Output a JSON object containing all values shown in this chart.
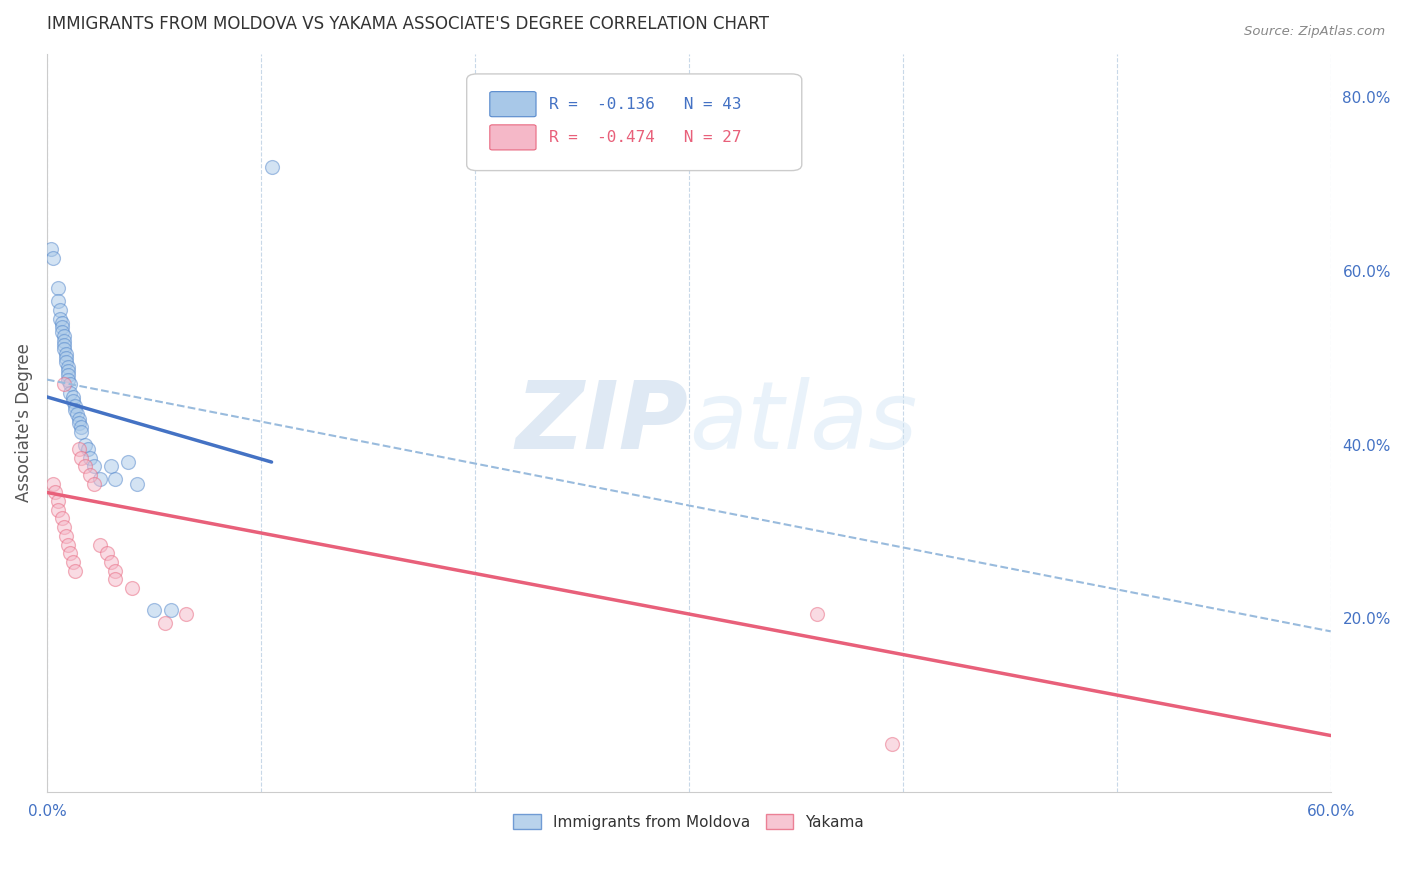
{
  "title": "IMMIGRANTS FROM MOLDOVA VS YAKAMA ASSOCIATE'S DEGREE CORRELATION CHART",
  "source": "Source: ZipAtlas.com",
  "ylabel": "Associate's Degree",
  "watermark_zip": "ZIP",
  "watermark_atlas": "atlas",
  "xlim": [
    0.0,
    0.6
  ],
  "ylim": [
    0.0,
    0.85
  ],
  "xtick_positions": [
    0.0,
    0.1,
    0.2,
    0.3,
    0.4,
    0.5,
    0.6
  ],
  "xticklabels": [
    "0.0%",
    "",
    "",
    "",
    "",
    "",
    "60.0%"
  ],
  "ytick_positions": [
    0.0,
    0.2,
    0.4,
    0.6,
    0.8
  ],
  "yticklabels_right": [
    "",
    "20.0%",
    "40.0%",
    "60.0%",
    "80.0%"
  ],
  "blue_color": "#a8c8e8",
  "pink_color": "#f5b8c8",
  "blue_edge_color": "#5588cc",
  "pink_edge_color": "#e86880",
  "blue_line_color": "#4472c4",
  "pink_line_color": "#e8607a",
  "dashed_line_color": "#99bbdd",
  "title_color": "#333333",
  "tick_color": "#4472c4",
  "grid_color": "#c8d8e8",
  "blue_scatter_x": [
    0.002,
    0.003,
    0.005,
    0.005,
    0.006,
    0.006,
    0.007,
    0.007,
    0.007,
    0.008,
    0.008,
    0.008,
    0.008,
    0.009,
    0.009,
    0.009,
    0.01,
    0.01,
    0.01,
    0.01,
    0.011,
    0.011,
    0.012,
    0.012,
    0.013,
    0.013,
    0.014,
    0.015,
    0.015,
    0.016,
    0.016,
    0.018,
    0.019,
    0.02,
    0.022,
    0.025,
    0.03,
    0.032,
    0.038,
    0.042,
    0.05,
    0.058,
    0.105
  ],
  "blue_scatter_y": [
    0.625,
    0.615,
    0.58,
    0.565,
    0.555,
    0.545,
    0.54,
    0.535,
    0.53,
    0.525,
    0.52,
    0.515,
    0.51,
    0.505,
    0.5,
    0.495,
    0.49,
    0.485,
    0.48,
    0.475,
    0.47,
    0.46,
    0.455,
    0.45,
    0.445,
    0.44,
    0.435,
    0.43,
    0.425,
    0.42,
    0.415,
    0.4,
    0.395,
    0.385,
    0.375,
    0.36,
    0.375,
    0.36,
    0.38,
    0.355,
    0.21,
    0.21,
    0.72
  ],
  "pink_scatter_x": [
    0.003,
    0.004,
    0.005,
    0.005,
    0.007,
    0.008,
    0.008,
    0.009,
    0.01,
    0.011,
    0.012,
    0.013,
    0.015,
    0.016,
    0.018,
    0.02,
    0.022,
    0.025,
    0.028,
    0.03,
    0.032,
    0.032,
    0.04,
    0.055,
    0.065,
    0.36,
    0.395
  ],
  "pink_scatter_y": [
    0.355,
    0.345,
    0.335,
    0.325,
    0.315,
    0.47,
    0.305,
    0.295,
    0.285,
    0.275,
    0.265,
    0.255,
    0.395,
    0.385,
    0.375,
    0.365,
    0.355,
    0.285,
    0.275,
    0.265,
    0.255,
    0.245,
    0.235,
    0.195,
    0.205,
    0.205,
    0.055
  ],
  "blue_trend_x": [
    0.0,
    0.105
  ],
  "blue_trend_y": [
    0.455,
    0.38
  ],
  "pink_trend_x": [
    0.0,
    0.6
  ],
  "pink_trend_y": [
    0.345,
    0.065
  ],
  "dashed_trend_x": [
    0.0,
    0.6
  ],
  "dashed_trend_y": [
    0.475,
    0.185
  ],
  "legend_label1": "Immigrants from Moldova",
  "legend_label2": "Yakama",
  "legend_text1": "R =  -0.136   N = 43",
  "legend_text2": "R =  -0.474   N = 27",
  "marker_size": 100,
  "marker_alpha": 0.5
}
